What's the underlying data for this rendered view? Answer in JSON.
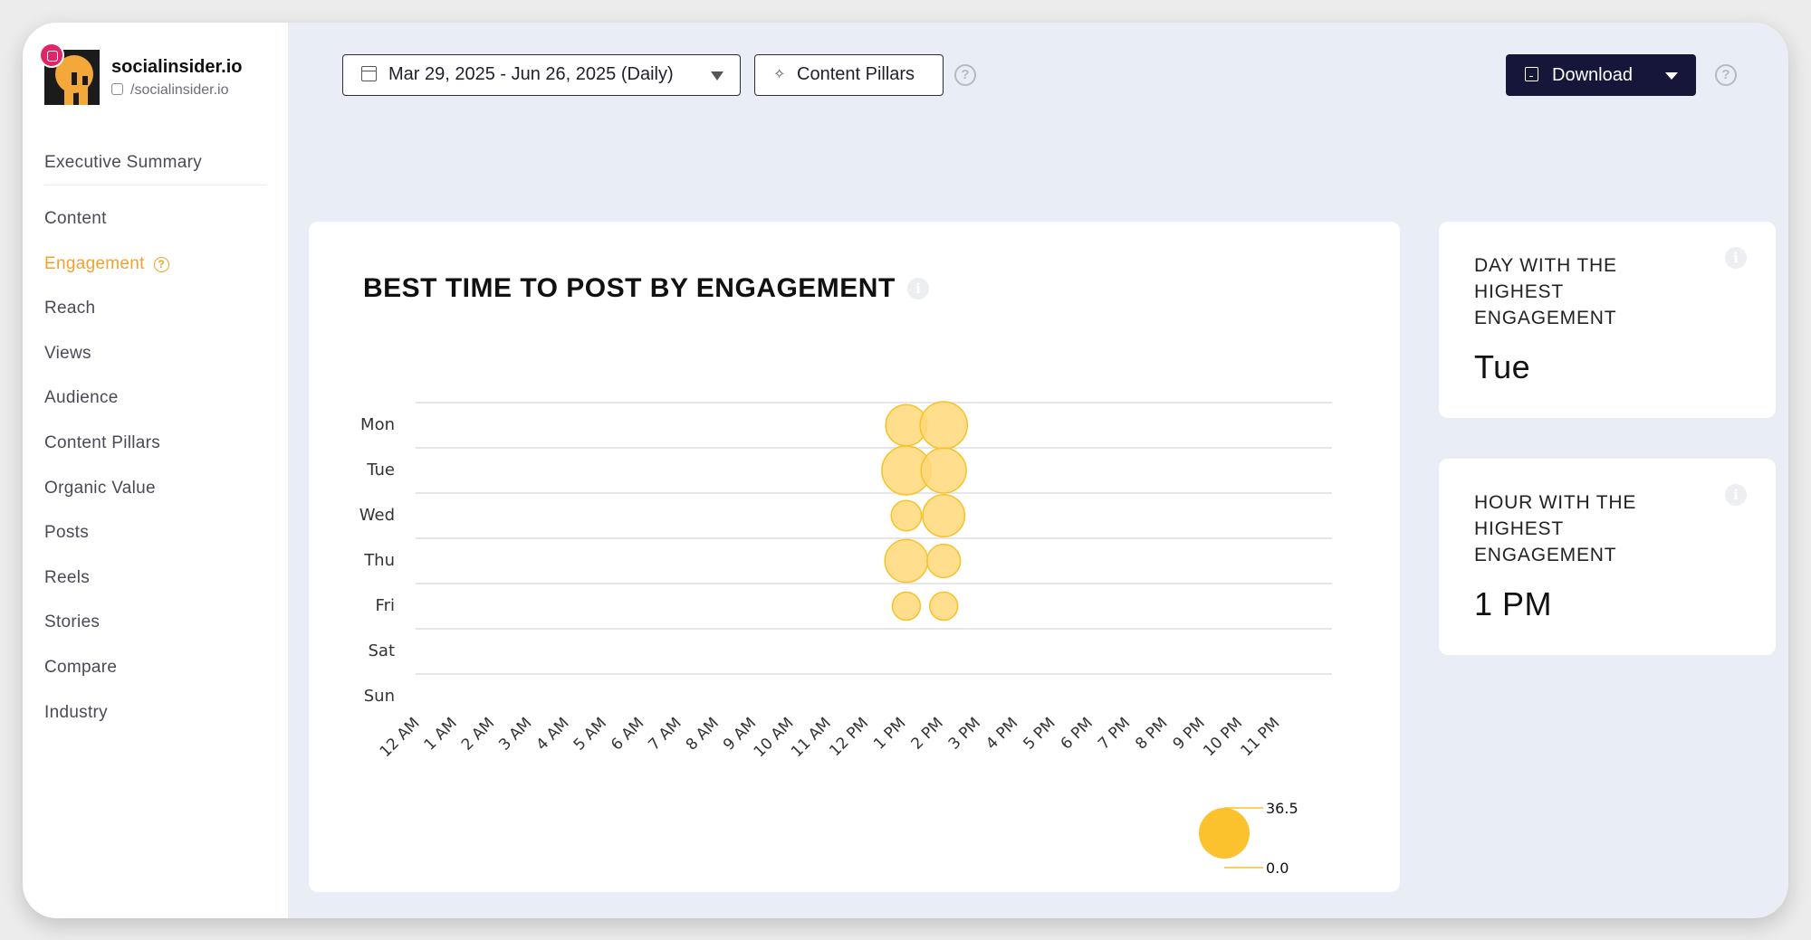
{
  "brand": {
    "name": "socialinsider.io",
    "handle": "/socialinsider.io",
    "platform_icon": "instagram-icon"
  },
  "nav": {
    "items": [
      {
        "label": "Executive Summary"
      },
      {
        "label": "Content"
      },
      {
        "label": "Engagement",
        "active": true
      },
      {
        "label": "Reach"
      },
      {
        "label": "Views"
      },
      {
        "label": "Audience"
      },
      {
        "label": "Content Pillars"
      },
      {
        "label": "Organic Value"
      },
      {
        "label": "Posts"
      },
      {
        "label": "Reels"
      },
      {
        "label": "Stories"
      },
      {
        "label": "Compare"
      },
      {
        "label": "Industry"
      }
    ],
    "help_glyph": "?"
  },
  "toolbar": {
    "date_range": "Mar 29, 2025 - Jun 26, 2025 (Daily)",
    "pillars_label": "Content Pillars",
    "download_label": "Download",
    "help_glyph": "?"
  },
  "chart": {
    "title": "BEST TIME TO POST BY ENGAGEMENT",
    "info_glyph": "i"
  },
  "kpis": [
    {
      "label": "DAY WITH THE HIGHEST ENGAGEMENT",
      "value": "Tue",
      "info_glyph": "i"
    },
    {
      "label": "HOUR WITH THE HIGHEST ENGAGEMENT",
      "value": "1 PM",
      "info_glyph": "i"
    }
  ],
  "colors": {
    "accent": "#f2a12a",
    "bubble_fill": "#ffd879",
    "bubble_stroke": "#f7c229",
    "legend_bubble": "#fcc22d",
    "download_bg": "#15163a",
    "instagram": "#e0246a"
  },
  "chart_data": {
    "type": "scatter",
    "days": [
      "Mon",
      "Tue",
      "Wed",
      "Thu",
      "Fri",
      "Sat",
      "Sun"
    ],
    "hours": [
      "12 AM",
      "1 AM",
      "2 AM",
      "3 AM",
      "4 AM",
      "5 AM",
      "6 AM",
      "7 AM",
      "8 AM",
      "9 AM",
      "10 AM",
      "11 AM",
      "12 PM",
      "1 PM",
      "2 PM",
      "3 PM",
      "4 PM",
      "5 PM",
      "6 PM",
      "7 PM",
      "8 PM",
      "9 PM",
      "10 PM",
      "11 PM"
    ],
    "points": [
      {
        "day": "Mon",
        "hour": "1 PM",
        "value": 26
      },
      {
        "day": "Mon",
        "hour": "2 PM",
        "value": 34
      },
      {
        "day": "Tue",
        "hour": "1 PM",
        "value": 36.5
      },
      {
        "day": "Tue",
        "hour": "2 PM",
        "value": 31
      },
      {
        "day": "Wed",
        "hour": "1 PM",
        "value": 14
      },
      {
        "day": "Wed",
        "hour": "2 PM",
        "value": 27
      },
      {
        "day": "Thu",
        "hour": "1 PM",
        "value": 28
      },
      {
        "day": "Thu",
        "hour": "2 PM",
        "value": 17
      },
      {
        "day": "Fri",
        "hour": "1 PM",
        "value": 12
      },
      {
        "day": "Fri",
        "hour": "2 PM",
        "value": 12
      }
    ],
    "size_legend": {
      "max": "36.5",
      "min": "0.0"
    }
  }
}
